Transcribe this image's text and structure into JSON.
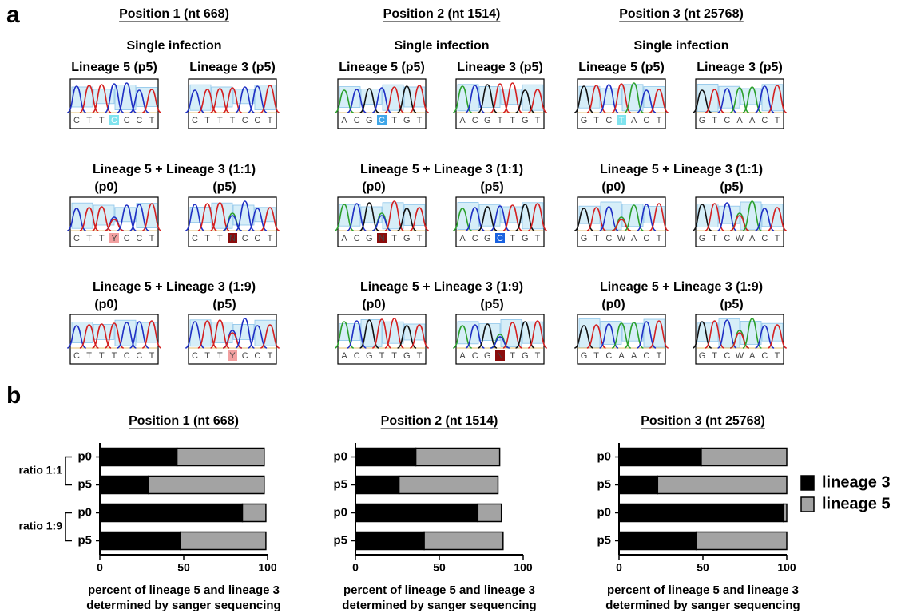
{
  "panel_labels": [
    "a",
    "b"
  ],
  "panel_a": [
    {
      "title": "Position 1 (nt 668)",
      "single": "Single infection",
      "single_traces": [
        {
          "label": "Lineage 5 (p5)",
          "bases": [
            "C",
            "T",
            "T",
            "C",
            "C",
            "C",
            "T"
          ],
          "highlight": {
            "index": 3,
            "color": "#7fe3ee"
          }
        },
        {
          "label": "Lineage 3 (p5)",
          "bases": [
            "C",
            "T",
            "T",
            "T",
            "C",
            "C",
            "T"
          ]
        }
      ],
      "mixes": [
        {
          "title": "Lineage 5 + Lineage 3 (1:1)",
          "traces": [
            {
              "label": "(p0)",
              "bases": [
                "C",
                "T",
                "T",
                "Y",
                "C",
                "C",
                "T"
              ],
              "highlight": {
                "index": 3,
                "color": "#f2a0a0"
              }
            },
            {
              "label": "(p5)",
              "bases": [
                "C",
                "T",
                "T",
                "N",
                "C",
                "C",
                "T"
              ],
              "highlight": {
                "index": 3,
                "color": "#8b0c0c"
              }
            }
          ]
        },
        {
          "title": "Lineage 5 + Lineage 3 (1:9)",
          "traces": [
            {
              "label": "(p0)",
              "bases": [
                "C",
                "T",
                "T",
                "T",
                "C",
                "C",
                "T"
              ]
            },
            {
              "label": "(p5)",
              "bases": [
                "C",
                "T",
                "T",
                "Y",
                "C",
                "C",
                "T"
              ],
              "highlight": {
                "index": 3,
                "color": "#f2a0a0"
              }
            }
          ]
        }
      ]
    },
    {
      "title": "Position 2 (nt 1514)",
      "single": "Single infection",
      "single_traces": [
        {
          "label": "Lineage 5 (p5)",
          "bases": [
            "A",
            "C",
            "G",
            "C",
            "T",
            "G",
            "T"
          ],
          "highlight": {
            "index": 3,
            "color": "#3fa6e8"
          }
        },
        {
          "label": "Lineage 3 (p5)",
          "bases": [
            "A",
            "C",
            "G",
            "T",
            "T",
            "G",
            "T"
          ]
        }
      ],
      "mixes": [
        {
          "title": "Lineage 5 + Lineage 3 (1:1)",
          "traces": [
            {
              "label": "(p0)",
              "bases": [
                "A",
                "C",
                "G",
                "N",
                "T",
                "G",
                "T"
              ],
              "highlight": {
                "index": 3,
                "color": "#8b0c0c"
              }
            },
            {
              "label": "(p5)",
              "bases": [
                "A",
                "C",
                "G",
                "C",
                "T",
                "G",
                "T"
              ],
              "highlight": {
                "index": 3,
                "color": "#1a62e0"
              }
            }
          ]
        },
        {
          "title": "Lineage 5 + Lineage 3 (1:9)",
          "traces": [
            {
              "label": "(p0)",
              "bases": [
                "A",
                "C",
                "G",
                "T",
                "T",
                "G",
                "T"
              ]
            },
            {
              "label": "(p5)",
              "bases": [
                "A",
                "C",
                "G",
                "N",
                "T",
                "G",
                "T"
              ],
              "highlight": {
                "index": 3,
                "color": "#8b0c0c"
              }
            }
          ]
        }
      ]
    },
    {
      "title": "Position 3 (nt 25768)",
      "single": "Single infection",
      "single_traces": [
        {
          "label": "Lineage 5 (p5)",
          "bases": [
            "G",
            "T",
            "C",
            "T",
            "A",
            "C",
            "T"
          ],
          "highlight": {
            "index": 3,
            "color": "#7fe3ee"
          }
        },
        {
          "label": "Lineage 3 (p5)",
          "bases": [
            "G",
            "T",
            "C",
            "A",
            "A",
            "C",
            "T"
          ]
        }
      ],
      "mixes": [
        {
          "title": "Lineage 5 + Lineage 3 (1:1)",
          "traces": [
            {
              "label": "(p0)",
              "bases": [
                "G",
                "T",
                "C",
                "W",
                "A",
                "C",
                "T"
              ]
            },
            {
              "label": "(p5)",
              "bases": [
                "G",
                "T",
                "C",
                "W",
                "A",
                "C",
                "T"
              ]
            }
          ]
        },
        {
          "title": "Lineage 5 + Lineage 3 (1:9)",
          "traces": [
            {
              "label": "(p0)",
              "bases": [
                "G",
                "T",
                "C",
                "A",
                "A",
                "C",
                "T"
              ]
            },
            {
              "label": "(p5)",
              "bases": [
                "G",
                "T",
                "C",
                "W",
                "A",
                "C",
                "T"
              ]
            }
          ]
        }
      ]
    }
  ],
  "chart_data": [
    {
      "type": "stacked-bar",
      "orientation": "horizontal",
      "title": "Position 1 (nt 668)",
      "categories": [
        "p0",
        "p5",
        "p0",
        "p5"
      ],
      "row_groups": [
        "ratio 1:1",
        "ratio 1:9"
      ],
      "series": [
        {
          "color": "#000000",
          "values": [
            46,
            29,
            85,
            48
          ]
        },
        {
          "color": "#a3a3a3",
          "values": [
            52,
            69,
            14,
            51
          ]
        }
      ],
      "xlim": [
        0,
        100
      ],
      "xticks": [
        0,
        50,
        100
      ],
      "xlabel": [
        "percent of lineage 5 and lineage 3",
        "determined by sanger sequencing"
      ]
    },
    {
      "type": "stacked-bar",
      "orientation": "horizontal",
      "title": "Position 2 (nt 1514)",
      "categories": [
        "p0",
        "p5",
        "p0",
        "p5"
      ],
      "series": [
        {
          "color": "#000000",
          "values": [
            36,
            26,
            73,
            41
          ]
        },
        {
          "color": "#a3a3a3",
          "values": [
            50,
            59,
            14,
            47
          ]
        }
      ],
      "xlim": [
        0,
        100
      ],
      "xticks": [
        0,
        50,
        100
      ],
      "xlabel": [
        "percent of lineage 5 and lineage 3",
        "determined by sanger sequencing"
      ]
    },
    {
      "type": "stacked-bar",
      "orientation": "horizontal",
      "title": "Position 3 (nt 25768)",
      "categories": [
        "p0",
        "p5",
        "p0",
        "p5"
      ],
      "series": [
        {
          "name": "lineage 3",
          "color": "#000000",
          "values": [
            49,
            23,
            98,
            46
          ]
        },
        {
          "name": "lineage 5",
          "color": "#a3a3a3",
          "values": [
            51,
            77,
            2,
            54
          ]
        }
      ],
      "xlim": [
        0,
        100
      ],
      "xticks": [
        0,
        50,
        100
      ],
      "legend": "right",
      "xlabel": [
        "percent of lineage 5 and lineage 3",
        "determined by sanger sequencing"
      ]
    }
  ]
}
